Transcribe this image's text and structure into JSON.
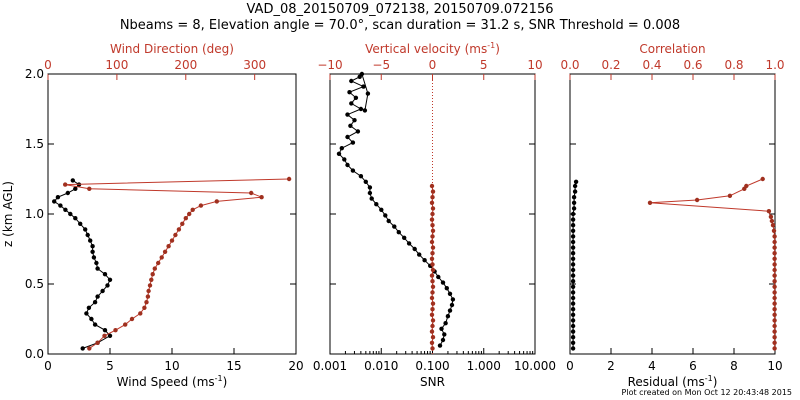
{
  "header": {
    "title_line1": "VAD_08_20150709_072138, 20150709.072156",
    "title_line2": "Nbeams = 8, Elevation angle = 70.0°, scan duration = 31.2 s, SNR Threshold = 0.008"
  },
  "footer": "Plot created on Mon Oct 12 20:43:48 2015",
  "colors": {
    "black": "#000000",
    "red": "#c0392b",
    "redDark": "#a0301f"
  },
  "chart_data": [
    {
      "id": "wind",
      "type": "line",
      "ylabel": "z (km AGL)",
      "ylim": [
        0,
        2.0
      ],
      "yticks": [
        0.0,
        0.5,
        1.0,
        1.5,
        2.0
      ],
      "ytick_labels": [
        "0.0",
        "0.5",
        "1.0",
        "1.5",
        "2.0"
      ],
      "bottom_axis": {
        "label_text": "Wind Speed (ms",
        "label_sup": "-1",
        "label_end": ")",
        "xlim": [
          0,
          20
        ],
        "ticks": [
          0,
          5,
          10,
          15,
          20
        ],
        "tick_labels": [
          "0",
          "5",
          "10",
          "15",
          "20"
        ]
      },
      "top_axis": {
        "label_text": "Wind Direction (deg)",
        "xlim": [
          0,
          360
        ],
        "ticks": [
          0,
          100,
          200,
          300
        ],
        "tick_labels": [
          "0",
          "100",
          "200",
          "300"
        ]
      },
      "series": [
        {
          "name": "Wind Speed",
          "axis": "bottom",
          "color": "#000000",
          "x": [
            2.8,
            4.0,
            5.0,
            4.6,
            3.8,
            3.5,
            3.1,
            3.3,
            3.8,
            4.0,
            4.4,
            4.8,
            5.0,
            4.6,
            4.0,
            3.9,
            3.7,
            3.6,
            3.6,
            3.4,
            3.2,
            3.0,
            2.6,
            2.2,
            1.8,
            1.4,
            1.0,
            0.5,
            0.8,
            1.6,
            2.2,
            2.5,
            2.0
          ],
          "y": [
            0.04,
            0.08,
            0.13,
            0.17,
            0.21,
            0.25,
            0.29,
            0.33,
            0.37,
            0.41,
            0.45,
            0.49,
            0.53,
            0.57,
            0.61,
            0.65,
            0.69,
            0.73,
            0.77,
            0.81,
            0.85,
            0.89,
            0.93,
            0.97,
            1.0,
            1.03,
            1.06,
            1.09,
            1.12,
            1.15,
            1.18,
            1.21,
            1.24
          ]
        },
        {
          "name": "Wind Direction",
          "axis": "top",
          "color": "#c0392b",
          "x": [
            60,
            72,
            82,
            98,
            112,
            122,
            134,
            140,
            143,
            145,
            146,
            148,
            150,
            152,
            155,
            160,
            165,
            170,
            175,
            180,
            185,
            190,
            195,
            200,
            205,
            210,
            222,
            245,
            310,
            295,
            60,
            25,
            350
          ],
          "y": [
            0.04,
            0.08,
            0.13,
            0.17,
            0.21,
            0.25,
            0.29,
            0.33,
            0.37,
            0.41,
            0.45,
            0.49,
            0.53,
            0.57,
            0.61,
            0.65,
            0.69,
            0.73,
            0.77,
            0.81,
            0.85,
            0.89,
            0.93,
            0.97,
            1.0,
            1.03,
            1.06,
            1.09,
            1.12,
            1.15,
            1.18,
            1.21,
            1.25
          ]
        }
      ]
    },
    {
      "id": "snr",
      "type": "line",
      "ylim": [
        0,
        2.0
      ],
      "yticks": [
        0.0,
        0.5,
        1.0,
        1.5,
        2.0
      ],
      "bottom_axis": {
        "label_text": "SNR",
        "xscale": "log",
        "xlim": [
          0.001,
          10
        ],
        "ticks": [
          0.001,
          0.01,
          0.1,
          1,
          10
        ],
        "tick_labels": [
          "0.001",
          "0.010",
          "0.100",
          "1.000",
          "10.000"
        ]
      },
      "top_axis": {
        "label_text": "Vertical velocity (ms",
        "label_sup": "-1",
        "label_end": ")",
        "xlim": [
          -10,
          10
        ],
        "ticks": [
          -10,
          -5,
          0,
          5,
          10
        ],
        "tick_labels": [
          "−10",
          "−5",
          "0",
          "5",
          "10"
        ]
      },
      "reference_line": {
        "axis": "top",
        "x": 0
      },
      "series": [
        {
          "name": "SNR",
          "axis": "bottom",
          "color": "#000000",
          "x": [
            0.14,
            0.16,
            0.17,
            0.15,
            0.18,
            0.2,
            0.22,
            0.24,
            0.25,
            0.22,
            0.19,
            0.16,
            0.13,
            0.11,
            0.09,
            0.07,
            0.055,
            0.045,
            0.035,
            0.028,
            0.022,
            0.018,
            0.014,
            0.012,
            0.01,
            0.008,
            0.0065,
            0.006,
            0.006,
            0.005,
            0.004,
            0.0028,
            0.0022,
            0.0019,
            0.0015,
            0.0017,
            0.0028,
            0.0022,
            0.0035,
            0.0025,
            0.003,
            0.0022,
            0.004,
            0.0026,
            0.0032,
            0.0024,
            0.0045,
            0.0026,
            0.0038,
            0.0042,
            0.0055,
            0.0048
          ],
          "y": [
            0.06,
            0.1,
            0.14,
            0.18,
            0.22,
            0.27,
            0.31,
            0.35,
            0.39,
            0.43,
            0.47,
            0.51,
            0.55,
            0.59,
            0.63,
            0.67,
            0.71,
            0.75,
            0.79,
            0.83,
            0.87,
            0.91,
            0.95,
            0.99,
            1.03,
            1.07,
            1.11,
            1.15,
            1.19,
            1.23,
            1.27,
            1.31,
            1.35,
            1.39,
            1.43,
            1.47,
            1.51,
            1.55,
            1.59,
            1.63,
            1.67,
            1.71,
            1.75,
            1.79,
            1.83,
            1.87,
            1.91,
            1.95,
            1.98,
            2.0,
            1.86,
            1.74
          ]
        },
        {
          "name": "Vertical velocity",
          "axis": "top",
          "color": "#c0392b",
          "x": [
            0.0,
            -0.05,
            0.05,
            -0.05,
            0.0,
            0.05,
            -0.05,
            0.0,
            0.05,
            -0.05,
            0.0,
            0.05,
            0.0,
            -0.05,
            0.05,
            0.0,
            -0.05,
            0.0,
            0.05,
            -0.05,
            0.0,
            0.05,
            0.0,
            -0.05,
            0.0,
            0.05,
            -0.05,
            0.0,
            0.05,
            -0.05
          ],
          "y": [
            0.04,
            0.08,
            0.12,
            0.16,
            0.2,
            0.24,
            0.28,
            0.32,
            0.36,
            0.4,
            0.44,
            0.48,
            0.52,
            0.56,
            0.6,
            0.64,
            0.68,
            0.72,
            0.76,
            0.8,
            0.84,
            0.88,
            0.92,
            0.96,
            1.0,
            1.04,
            1.08,
            1.12,
            1.16,
            1.2
          ]
        }
      ]
    },
    {
      "id": "residual",
      "type": "line",
      "ylim": [
        0,
        2.0
      ],
      "yticks": [
        0.0,
        0.5,
        1.0,
        1.5,
        2.0
      ],
      "bottom_axis": {
        "label_text": "Residual (ms",
        "label_sup": "-1",
        "label_end": ")",
        "xlim": [
          0,
          10
        ],
        "ticks": [
          0,
          2,
          4,
          6,
          8,
          10
        ],
        "tick_labels": [
          "0",
          "2",
          "4",
          "6",
          "8",
          "10"
        ]
      },
      "top_axis": {
        "label_text": "Correlation",
        "xlim": [
          0,
          1.0
        ],
        "ticks": [
          0,
          0.2,
          0.4,
          0.6,
          0.8,
          1.0
        ],
        "tick_labels": [
          "0.0",
          "0.2",
          "0.4",
          "0.6",
          "0.8",
          "1.0"
        ]
      },
      "series": [
        {
          "name": "Residual",
          "axis": "bottom",
          "color": "#000000",
          "x": [
            0.15,
            0.15,
            0.15,
            0.15,
            0.15,
            0.15,
            0.15,
            0.15,
            0.15,
            0.15,
            0.15,
            0.15,
            0.15,
            0.15,
            0.15,
            0.15,
            0.15,
            0.15,
            0.15,
            0.15,
            0.15,
            0.15,
            0.15,
            0.15,
            0.15,
            0.2,
            0.2,
            0.2,
            0.25,
            0.25,
            0.3
          ],
          "y": [
            0.04,
            0.08,
            0.12,
            0.16,
            0.2,
            0.24,
            0.28,
            0.32,
            0.36,
            0.4,
            0.44,
            0.48,
            0.52,
            0.56,
            0.6,
            0.64,
            0.68,
            0.72,
            0.76,
            0.8,
            0.84,
            0.88,
            0.92,
            0.96,
            1.0,
            1.04,
            1.08,
            1.12,
            1.16,
            1.2,
            1.23
          ]
        },
        {
          "name": "Correlation",
          "axis": "top",
          "color": "#c0392b",
          "x": [
            0.998,
            0.998,
            0.998,
            0.998,
            0.998,
            0.998,
            0.998,
            0.998,
            0.998,
            0.998,
            0.998,
            0.998,
            0.998,
            0.998,
            0.998,
            0.998,
            0.998,
            0.998,
            0.998,
            0.998,
            0.998,
            0.995,
            0.99,
            0.985,
            0.98,
            0.97,
            0.39,
            0.62,
            0.78,
            0.85,
            0.86,
            0.94
          ],
          "y": [
            0.04,
            0.08,
            0.12,
            0.16,
            0.2,
            0.24,
            0.28,
            0.32,
            0.36,
            0.4,
            0.44,
            0.48,
            0.52,
            0.56,
            0.6,
            0.64,
            0.68,
            0.72,
            0.76,
            0.8,
            0.84,
            0.88,
            0.92,
            0.95,
            0.98,
            1.02,
            1.08,
            1.1,
            1.13,
            1.18,
            1.2,
            1.25
          ]
        }
      ]
    }
  ]
}
